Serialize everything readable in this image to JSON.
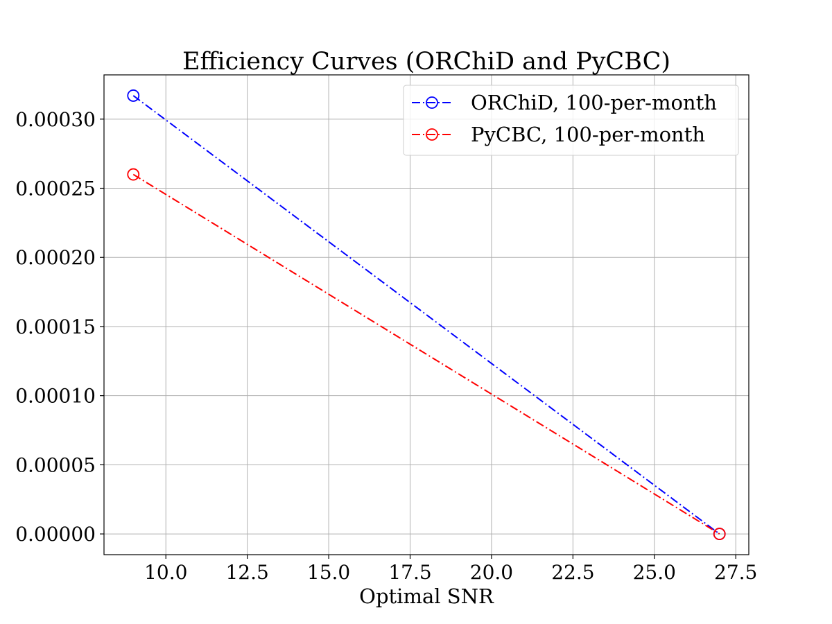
{
  "chart_data": {
    "type": "line",
    "title": "Efficiency Curves (ORChiD and PyCBC)",
    "xlabel": "Optimal SNR",
    "ylabel": "",
    "xlim": [
      8.1,
      27.9
    ],
    "ylim": [
      -1.5e-05,
      0.000332
    ],
    "x_ticks": [
      10.0,
      12.5,
      15.0,
      17.5,
      20.0,
      22.5,
      25.0,
      27.5
    ],
    "x_tick_labels": [
      "10.0",
      "12.5",
      "15.0",
      "17.5",
      "20.0",
      "22.5",
      "25.0",
      "27.5"
    ],
    "y_ticks": [
      0.0,
      5e-05,
      0.0001,
      0.00015,
      0.0002,
      0.00025,
      0.0003
    ],
    "y_tick_labels": [
      "0.00000",
      "0.00005",
      "0.00010",
      "0.00015",
      "0.00020",
      "0.00025",
      "0.00030"
    ],
    "grid": true,
    "legend_position": "top-right",
    "series": [
      {
        "name": "ORChiD, 100-per-month",
        "color": "#0000ff",
        "line_style": "dash-dot",
        "marker": "open-circle",
        "x": [
          9.0,
          27.0
        ],
        "y": [
          0.000317,
          0.0
        ]
      },
      {
        "name": "PyCBC, 100-per-month",
        "color": "#ff0000",
        "line_style": "dash-dot",
        "marker": "open-circle",
        "x": [
          9.0,
          27.0
        ],
        "y": [
          0.00026,
          0.0
        ]
      }
    ]
  }
}
